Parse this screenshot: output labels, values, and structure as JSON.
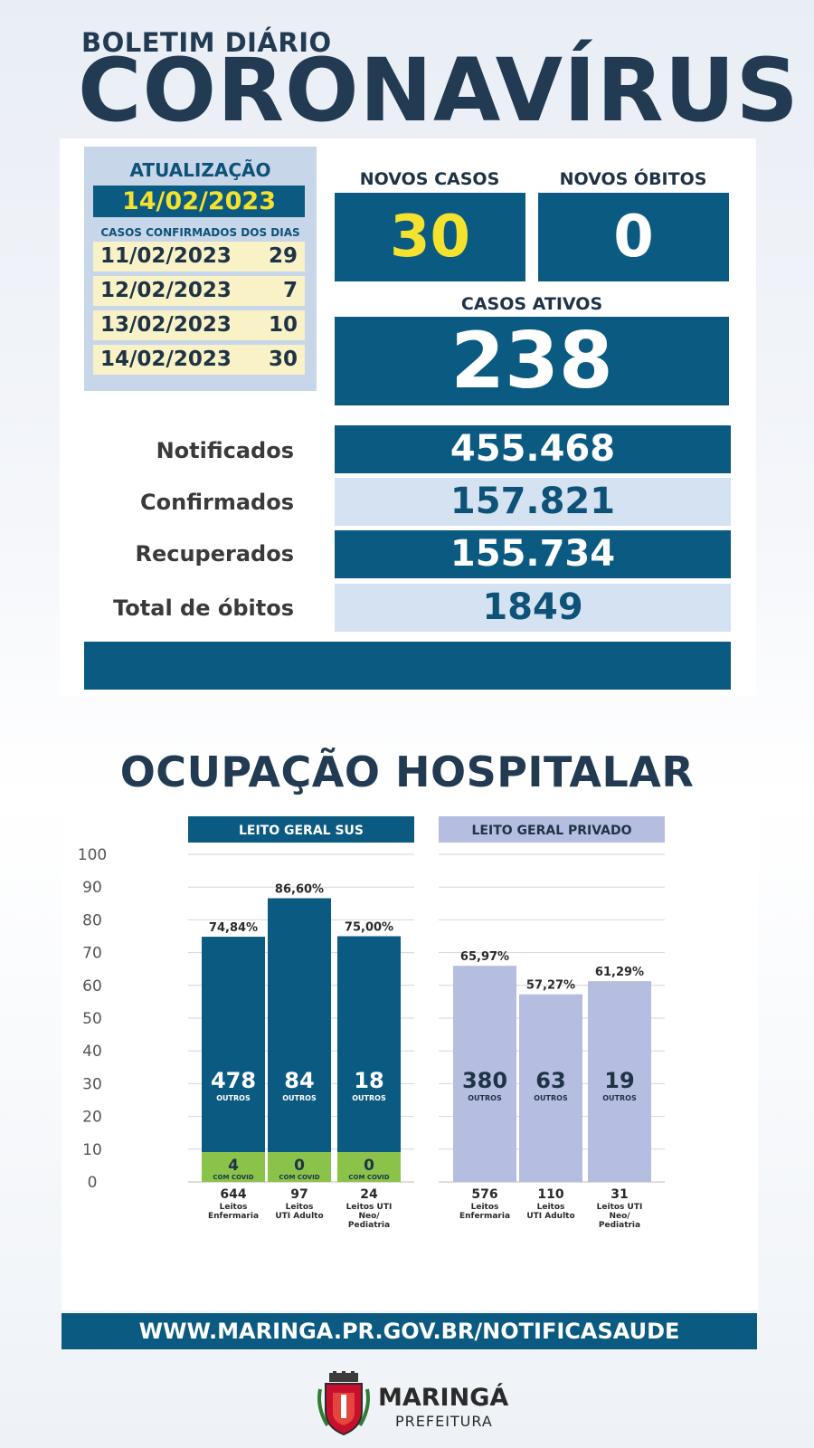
{
  "header": {
    "subtitle": "BOLETIM DIÁRIO",
    "title": "CORONAVÍRUS"
  },
  "update": {
    "title": "ATUALIZAÇÃO",
    "date": "14/02/2023",
    "subtitle": "CASOS CONFIRMADOS DOS DIAS",
    "days": [
      {
        "date": "11/02/2023",
        "value": "29"
      },
      {
        "date": "12/02/2023",
        "value": "7"
      },
      {
        "date": "13/02/2023",
        "value": "10"
      },
      {
        "date": "14/02/2023",
        "value": "30"
      }
    ]
  },
  "highlights": {
    "new_cases_label": "NOVOS CASOS",
    "new_cases": "30",
    "new_deaths_label": "NOVOS ÓBITOS",
    "new_deaths": "0",
    "active_label": "CASOS ATIVOS",
    "active": "238"
  },
  "stats": [
    {
      "label": "Notificados",
      "value": "455.468"
    },
    {
      "label": "Confirmados",
      "value": "157.821"
    },
    {
      "label": "Recuperados",
      "value": "155.734"
    },
    {
      "label": "Total de óbitos",
      "value": "1849"
    }
  ],
  "hospital": {
    "title": "OCUPAÇÃO HOSPITALAR"
  },
  "chart_data": {
    "type": "bar",
    "ylim": [
      0,
      100
    ],
    "yticks": [
      "0",
      "10",
      "20",
      "30",
      "40",
      "50",
      "60",
      "70",
      "80",
      "90",
      "100"
    ],
    "grid": true,
    "groups": [
      {
        "name": "LEITO GERAL SUS",
        "color": "#0b5a82",
        "bars": [
          {
            "total": "644",
            "label_lines": [
              "Leitos",
              "Enfermaria"
            ],
            "percent": 74.84,
            "percent_label": "74,84%",
            "outros": "478",
            "covid": "4"
          },
          {
            "total": "97",
            "label_lines": [
              "Leitos",
              "UTI Adulto"
            ],
            "percent": 86.6,
            "percent_label": "86,60%",
            "outros": "84",
            "covid": "0"
          },
          {
            "total": "24",
            "label_lines": [
              "Leitos UTI",
              "Neo/",
              "Pediatria"
            ],
            "percent": 75.0,
            "percent_label": "75,00%",
            "outros": "18",
            "covid": "0"
          }
        ]
      },
      {
        "name": "LEITO GERAL PRIVADO",
        "color": "#b5bde0",
        "bars": [
          {
            "total": "576",
            "label_lines": [
              "Leitos",
              "Enfermaria"
            ],
            "percent": 65.97,
            "percent_label": "65,97%",
            "outros": "380"
          },
          {
            "total": "110",
            "label_lines": [
              "Leitos",
              "UTI Adulto"
            ],
            "percent": 57.27,
            "percent_label": "57,27%",
            "outros": "63"
          },
          {
            "total": "31",
            "label_lines": [
              "Leitos UTI",
              "Neo/",
              "Pediatria"
            ],
            "percent": 61.29,
            "percent_label": "61,29%",
            "outros": "19"
          }
        ]
      }
    ],
    "outros_label": "OUTROS",
    "covid_label": "COM COVID",
    "covid_color": "#8bc34a"
  },
  "footer": {
    "url": "WWW.MARINGA.PR.GOV.BR/NOTIFICASAUDE"
  },
  "brand": {
    "name": "MARINGÁ",
    "sub": "PREFEITURA"
  }
}
